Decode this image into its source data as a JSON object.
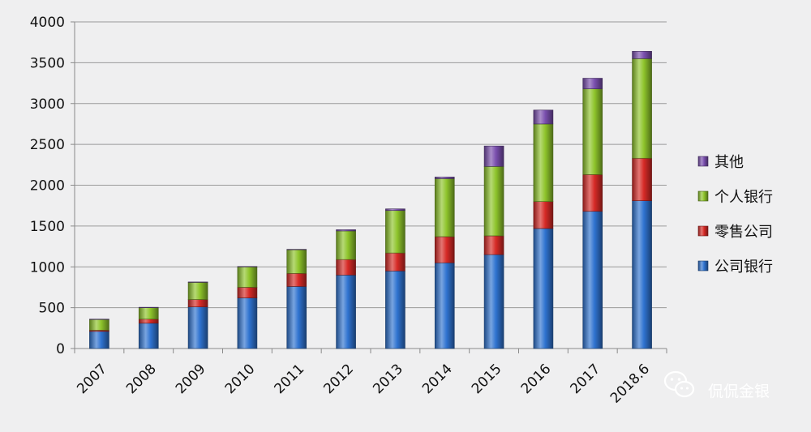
{
  "chart_data": {
    "type": "bar",
    "stacked": true,
    "categories": [
      "2007",
      "2008",
      "2009",
      "2010",
      "2011",
      "2012",
      "2013",
      "2014",
      "2015",
      "2016",
      "2017",
      "2018.6"
    ],
    "series": [
      {
        "name": "公司银行",
        "color": "#2f73d0",
        "values": [
          210,
          310,
          510,
          620,
          760,
          900,
          950,
          1050,
          1150,
          1470,
          1680,
          1810
        ]
      },
      {
        "name": "零售公司",
        "color": "#d62a26",
        "values": [
          15,
          50,
          90,
          130,
          160,
          190,
          220,
          320,
          230,
          330,
          450,
          520
        ]
      },
      {
        "name": "个人银行",
        "color": "#8ec42b",
        "values": [
          130,
          140,
          210,
          250,
          290,
          350,
          520,
          710,
          850,
          950,
          1050,
          1220
        ]
      },
      {
        "name": "其他",
        "color": "#7a4fae",
        "values": [
          5,
          5,
          5,
          5,
          5,
          15,
          20,
          20,
          250,
          170,
          130,
          90
        ]
      }
    ],
    "ylim": [
      0,
      4000
    ],
    "yticks": [
      0,
      500,
      1000,
      1500,
      2000,
      2500,
      3000,
      3500,
      4000
    ],
    "grid": true,
    "legend_position": "right",
    "title": "",
    "xlabel": "",
    "ylabel": ""
  },
  "watermark": {
    "text": "侃侃金银",
    "icon": "wechat-icon"
  }
}
